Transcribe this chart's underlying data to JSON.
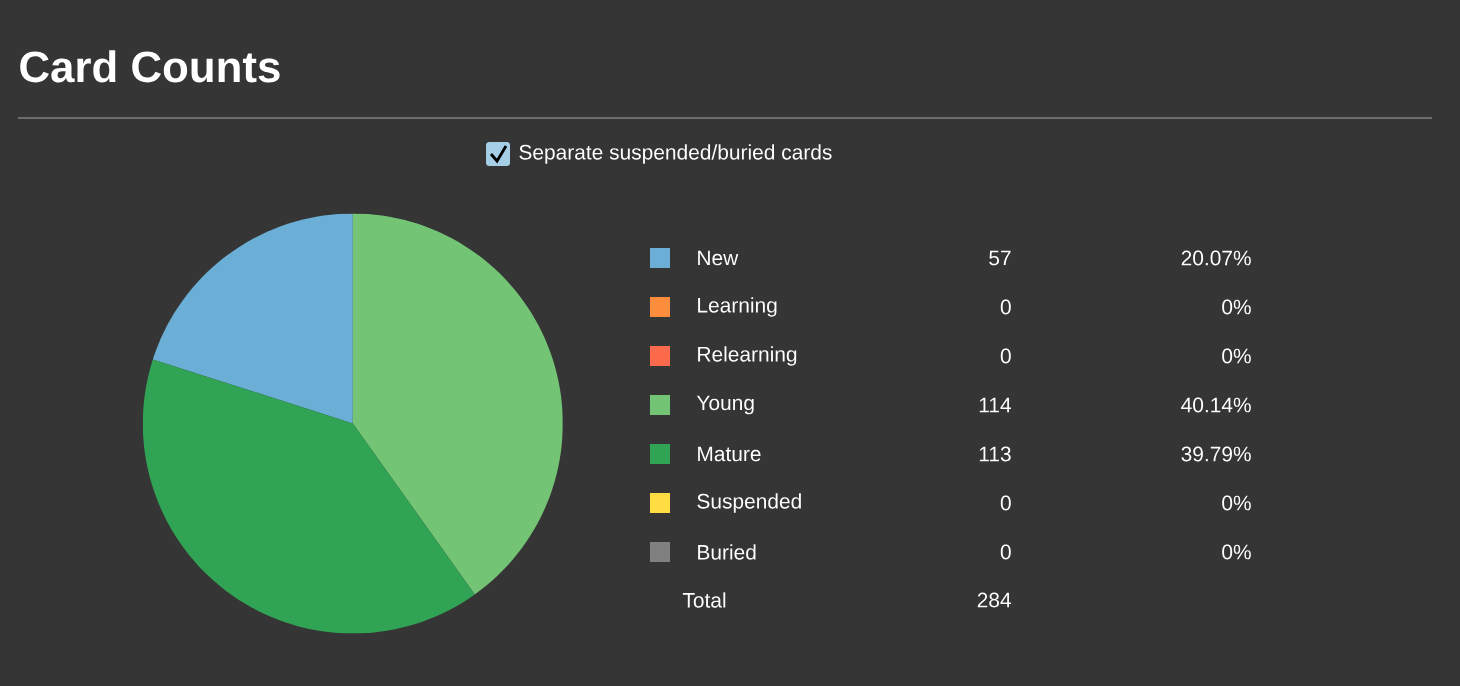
{
  "chart_data": {
    "type": "pie",
    "title": "Card Counts",
    "categories": [
      "New",
      "Learning",
      "Relearning",
      "Young",
      "Mature",
      "Suspended",
      "Buried"
    ],
    "values": [
      20.07,
      0,
      0,
      40.14,
      39.79,
      0,
      0
    ],
    "colors": [
      "#6baed6",
      "#fd8d3c",
      "#fb6a4a",
      "#74c476",
      "#31a354",
      "#ffdc41",
      "#808080"
    ],
    "value_labels": [
      "20.07%",
      "0%",
      "0%",
      "40.14%",
      "39.79%",
      "0%",
      "0%"
    ],
    "legend": "right",
    "totals": [
      "284"
    ],
    "annotations": [
      "Separate suspended/buried cards",
      "57",
      "0",
      "0",
      "114",
      "113",
      "0",
      "0",
      "Total"
    ]
  }
}
